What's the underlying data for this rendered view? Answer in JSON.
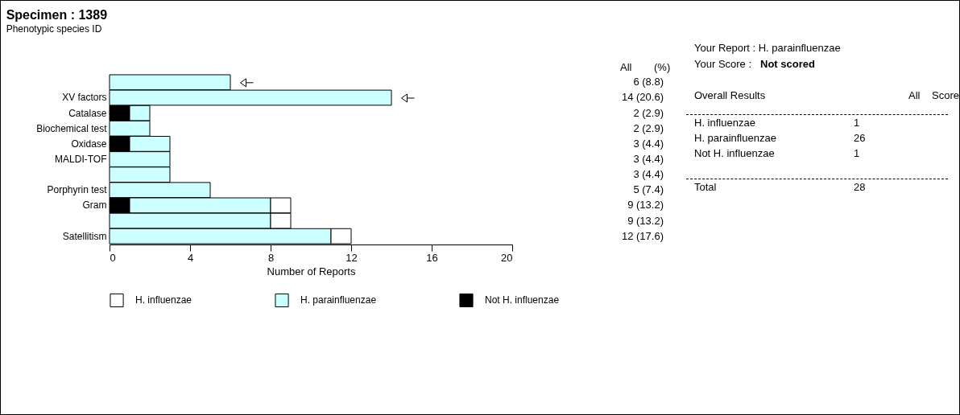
{
  "chart_data": {
    "type": "bar",
    "orientation": "horizontal",
    "stacked": true,
    "title": "Specimen : 1389",
    "subtitle": "Phenotypic species ID",
    "xlabel": "Number of Reports",
    "categories": [
      null,
      "XV factors",
      "Catalase",
      "Biochemical test",
      "Oxidase",
      "MALDI-TOF",
      null,
      "Porphyrin test",
      "Gram",
      null,
      "Satellitism"
    ],
    "series": [
      {
        "name": "Not H. influenzae",
        "color": "#000000",
        "values": [
          null,
          null,
          1,
          null,
          1,
          null,
          null,
          null,
          1,
          null,
          null
        ]
      },
      {
        "name": "H. parainfluenzae",
        "color": "#ccffff",
        "values": [
          6,
          14,
          1,
          2,
          2,
          3,
          3,
          5,
          7,
          8,
          11
        ]
      },
      {
        "name": "H. influenzae",
        "color": "#ffffff",
        "values": [
          null,
          null,
          null,
          null,
          null,
          null,
          null,
          null,
          1,
          1,
          1
        ]
      }
    ],
    "xlim": [
      0,
      20
    ],
    "xticks": [
      0,
      4,
      8,
      12,
      16,
      20
    ],
    "grid": false,
    "legend": "bottom",
    "annotations": [
      "6 (8.8)",
      "14 (20.6)",
      "2 (2.9)",
      "2 (2.9)",
      "3 (4.4)",
      "3 (4.4)",
      "3 (4.4)",
      "5 (7.4)",
      "9 (13.2)",
      "9 (13.2)",
      "12 (17.6)",
      "All",
      "(%)",
      "Your Report : H. parainfluenzae",
      "Your Score :",
      "Not scored",
      "Overall Results",
      "All",
      "Score",
      "H. influenzae",
      "1",
      "H. parainfluenzae",
      "26",
      "Not H. influenzae",
      "1",
      "Total",
      "28"
    ]
  }
}
